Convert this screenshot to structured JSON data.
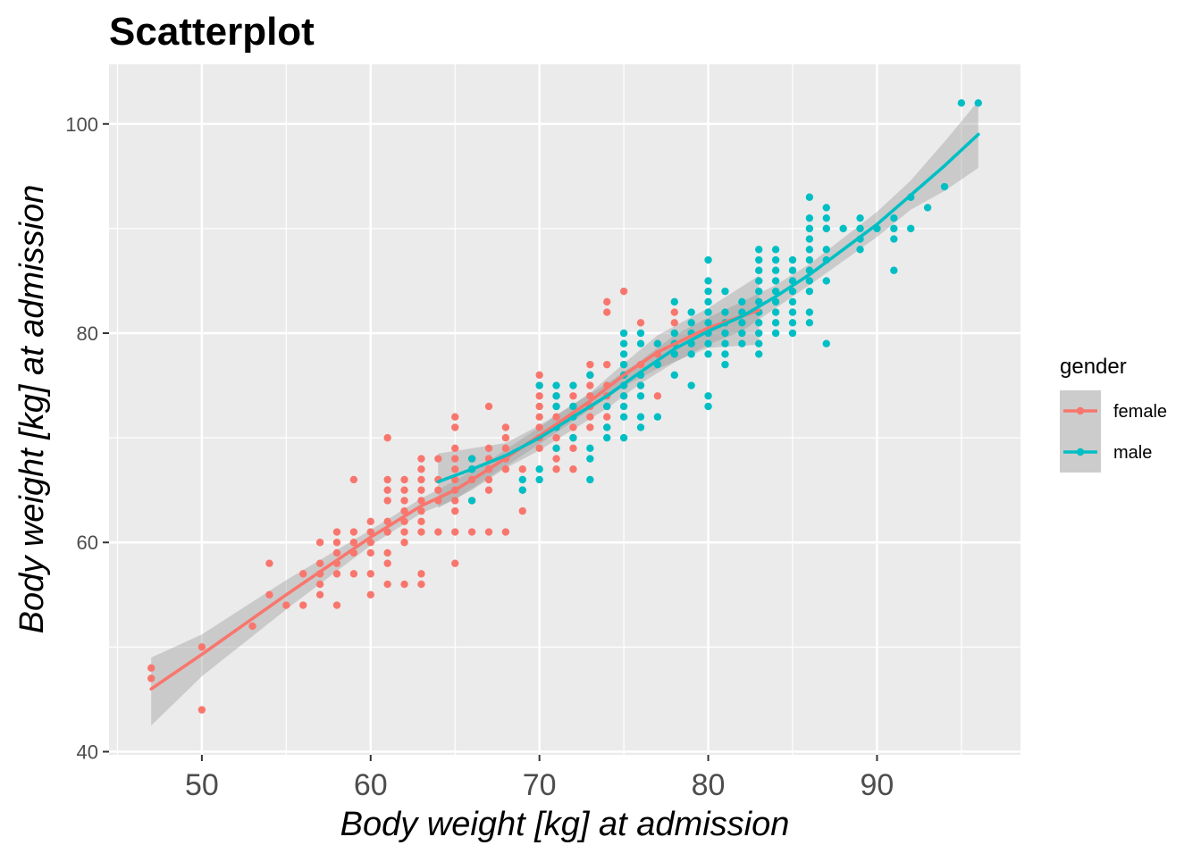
{
  "chart_data": {
    "type": "scatter",
    "title": "Scatterplot",
    "xlabel": "Body weight [kg] at admission",
    "ylabel": "Body weight [kg] at admission",
    "xlim": [
      44.5,
      98.5
    ],
    "ylim": [
      39.7,
      105.7
    ],
    "x_ticks": [
      50,
      60,
      70,
      80,
      90
    ],
    "y_ticks": [
      40,
      60,
      80,
      100
    ],
    "grid": true,
    "legend": {
      "title": "gender",
      "position": "right"
    },
    "series": [
      {
        "name": "female",
        "color": "#F8766D",
        "points": [
          [
            47,
            48
          ],
          [
            47,
            47
          ],
          [
            50,
            50
          ],
          [
            50,
            44
          ],
          [
            53,
            52
          ],
          [
            54,
            58
          ],
          [
            54,
            55
          ],
          [
            55,
            54
          ],
          [
            56,
            57
          ],
          [
            56,
            54
          ],
          [
            57,
            60
          ],
          [
            57,
            58
          ],
          [
            57,
            57
          ],
          [
            57,
            56
          ],
          [
            57,
            55
          ],
          [
            58,
            61
          ],
          [
            58,
            60
          ],
          [
            58,
            59
          ],
          [
            58,
            58
          ],
          [
            58,
            57
          ],
          [
            58,
            54
          ],
          [
            59,
            66
          ],
          [
            59,
            61
          ],
          [
            59,
            60
          ],
          [
            59,
            59
          ],
          [
            59,
            57
          ],
          [
            60,
            62
          ],
          [
            60,
            61
          ],
          [
            60,
            60
          ],
          [
            60,
            59
          ],
          [
            60,
            57
          ],
          [
            60,
            55
          ],
          [
            61,
            70
          ],
          [
            61,
            66
          ],
          [
            61,
            65
          ],
          [
            61,
            64
          ],
          [
            61,
            62
          ],
          [
            61,
            61
          ],
          [
            61,
            59
          ],
          [
            61,
            58
          ],
          [
            61,
            56
          ],
          [
            62,
            66
          ],
          [
            62,
            65
          ],
          [
            62,
            64
          ],
          [
            62,
            63
          ],
          [
            62,
            62
          ],
          [
            62,
            61
          ],
          [
            62,
            60
          ],
          [
            62,
            56
          ],
          [
            63,
            68
          ],
          [
            63,
            67
          ],
          [
            63,
            66
          ],
          [
            63,
            65
          ],
          [
            63,
            64
          ],
          [
            63,
            63
          ],
          [
            63,
            62
          ],
          [
            63,
            61
          ],
          [
            63,
            57
          ],
          [
            63,
            56
          ],
          [
            64,
            68
          ],
          [
            64,
            66
          ],
          [
            64,
            65
          ],
          [
            64,
            64
          ],
          [
            64,
            61
          ],
          [
            65,
            72
          ],
          [
            65,
            71
          ],
          [
            65,
            69
          ],
          [
            65,
            68
          ],
          [
            65,
            67
          ],
          [
            65,
            66
          ],
          [
            65,
            65
          ],
          [
            65,
            64
          ],
          [
            65,
            63
          ],
          [
            65,
            61
          ],
          [
            65,
            58
          ],
          [
            66,
            68
          ],
          [
            66,
            66
          ],
          [
            66,
            64
          ],
          [
            66,
            61
          ],
          [
            67,
            73
          ],
          [
            67,
            69
          ],
          [
            67,
            68
          ],
          [
            67,
            67
          ],
          [
            67,
            66
          ],
          [
            67,
            65
          ],
          [
            67,
            61
          ],
          [
            68,
            71
          ],
          [
            68,
            70
          ],
          [
            68,
            69
          ],
          [
            68,
            68
          ],
          [
            68,
            67
          ],
          [
            68,
            61
          ],
          [
            69,
            67
          ],
          [
            69,
            65
          ],
          [
            69,
            63
          ],
          [
            70,
            76
          ],
          [
            70,
            75
          ],
          [
            70,
            74
          ],
          [
            70,
            73
          ],
          [
            70,
            72
          ],
          [
            70,
            71
          ],
          [
            70,
            70
          ],
          [
            70,
            69
          ],
          [
            71,
            74
          ],
          [
            71,
            73
          ],
          [
            71,
            72
          ],
          [
            71,
            70
          ],
          [
            71,
            69
          ],
          [
            71,
            68
          ],
          [
            71,
            67
          ],
          [
            72,
            74
          ],
          [
            72,
            73
          ],
          [
            72,
            71
          ],
          [
            72,
            70
          ],
          [
            72,
            69
          ],
          [
            72,
            67
          ],
          [
            73,
            77
          ],
          [
            73,
            76
          ],
          [
            73,
            75
          ],
          [
            73,
            74
          ],
          [
            73,
            73
          ],
          [
            73,
            72
          ],
          [
            73,
            71
          ],
          [
            74,
            83
          ],
          [
            74,
            82
          ],
          [
            74,
            77
          ],
          [
            74,
            75
          ],
          [
            74,
            74
          ],
          [
            74,
            73
          ],
          [
            74,
            72
          ],
          [
            74,
            71
          ],
          [
            75,
            84
          ],
          [
            75,
            77
          ],
          [
            75,
            76
          ],
          [
            75,
            75
          ],
          [
            75,
            74
          ],
          [
            76,
            81
          ],
          [
            76,
            77
          ],
          [
            76,
            75
          ],
          [
            77,
            79
          ],
          [
            77,
            78
          ],
          [
            77,
            74
          ],
          [
            78,
            82
          ],
          [
            78,
            81
          ],
          [
            78,
            79
          ],
          [
            78,
            78
          ]
        ],
        "smooth_x": [
          47,
          50,
          55,
          60,
          63,
          65,
          67,
          70,
          73,
          75,
          77,
          80,
          83
        ],
        "smooth_y": [
          46,
          49.3,
          55,
          60.5,
          63.5,
          65,
          67,
          70.2,
          73.5,
          76,
          78.2,
          80.5,
          82.2
        ],
        "band_upper": [
          49,
          51.2,
          56.4,
          61.2,
          64.2,
          65.9,
          67.8,
          71,
          74.3,
          77.1,
          79.8,
          82.4,
          85.5
        ],
        "band_lower": [
          42.5,
          47.2,
          53.6,
          59.7,
          62.8,
          64.1,
          66.2,
          69.4,
          72.7,
          74.9,
          76.6,
          78.6,
          78.9
        ]
      },
      {
        "name": "male",
        "color": "#00BFC4",
        "points": [
          [
            66,
            68
          ],
          [
            66,
            64
          ],
          [
            66,
            67
          ],
          [
            69,
            66
          ],
          [
            69,
            65
          ],
          [
            70,
            75
          ],
          [
            70,
            67
          ],
          [
            70,
            66
          ],
          [
            71,
            75
          ],
          [
            71,
            74
          ],
          [
            71,
            73
          ],
          [
            71,
            71
          ],
          [
            71,
            69
          ],
          [
            72,
            75
          ],
          [
            72,
            73
          ],
          [
            72,
            72
          ],
          [
            72,
            70
          ],
          [
            73,
            76
          ],
          [
            73,
            69
          ],
          [
            73,
            68
          ],
          [
            73,
            66
          ],
          [
            74,
            73
          ],
          [
            74,
            71
          ],
          [
            74,
            70
          ],
          [
            75,
            80
          ],
          [
            75,
            79
          ],
          [
            75,
            78
          ],
          [
            75,
            77
          ],
          [
            75,
            76
          ],
          [
            75,
            75
          ],
          [
            75,
            74
          ],
          [
            75,
            73
          ],
          [
            75,
            72
          ],
          [
            75,
            70
          ],
          [
            76,
            80
          ],
          [
            76,
            79
          ],
          [
            76,
            76
          ],
          [
            76,
            75
          ],
          [
            76,
            74
          ],
          [
            76,
            72
          ],
          [
            76,
            71
          ],
          [
            77,
            79
          ],
          [
            77,
            77
          ],
          [
            77,
            72
          ],
          [
            78,
            83
          ],
          [
            78,
            80
          ],
          [
            78,
            79
          ],
          [
            78,
            78
          ],
          [
            78,
            76
          ],
          [
            79,
            82
          ],
          [
            79,
            81
          ],
          [
            79,
            80
          ],
          [
            79,
            79
          ],
          [
            79,
            78
          ],
          [
            79,
            75
          ],
          [
            80,
            87
          ],
          [
            80,
            85
          ],
          [
            80,
            84
          ],
          [
            80,
            83
          ],
          [
            80,
            82
          ],
          [
            80,
            81
          ],
          [
            80,
            80
          ],
          [
            80,
            79
          ],
          [
            80,
            78
          ],
          [
            80,
            74
          ],
          [
            80,
            73
          ],
          [
            81,
            84
          ],
          [
            81,
            82
          ],
          [
            81,
            81
          ],
          [
            81,
            80
          ],
          [
            81,
            79
          ],
          [
            81,
            78
          ],
          [
            81,
            77
          ],
          [
            82,
            83
          ],
          [
            82,
            82
          ],
          [
            82,
            81
          ],
          [
            82,
            80
          ],
          [
            82,
            79
          ],
          [
            83,
            88
          ],
          [
            83,
            87
          ],
          [
            83,
            86
          ],
          [
            83,
            85
          ],
          [
            83,
            84
          ],
          [
            83,
            83
          ],
          [
            83,
            82
          ],
          [
            83,
            81
          ],
          [
            83,
            80
          ],
          [
            83,
            79
          ],
          [
            83,
            78
          ],
          [
            84,
            88
          ],
          [
            84,
            87
          ],
          [
            84,
            86
          ],
          [
            84,
            85
          ],
          [
            84,
            84
          ],
          [
            84,
            83
          ],
          [
            84,
            82
          ],
          [
            84,
            81
          ],
          [
            84,
            80
          ],
          [
            85,
            87
          ],
          [
            85,
            86
          ],
          [
            85,
            85
          ],
          [
            85,
            84
          ],
          [
            85,
            83
          ],
          [
            85,
            82
          ],
          [
            85,
            81
          ],
          [
            85,
            80
          ],
          [
            86,
            93
          ],
          [
            86,
            91
          ],
          [
            86,
            90
          ],
          [
            86,
            89
          ],
          [
            86,
            88
          ],
          [
            86,
            87
          ],
          [
            86,
            86
          ],
          [
            86,
            85
          ],
          [
            86,
            84
          ],
          [
            86,
            82
          ],
          [
            86,
            81
          ],
          [
            87,
            92
          ],
          [
            87,
            91
          ],
          [
            87,
            90
          ],
          [
            87,
            88
          ],
          [
            87,
            87
          ],
          [
            87,
            85
          ],
          [
            87,
            79
          ],
          [
            88,
            90
          ],
          [
            89,
            91
          ],
          [
            89,
            90
          ],
          [
            89,
            89
          ],
          [
            89,
            88
          ],
          [
            90,
            90
          ],
          [
            91,
            91
          ],
          [
            91,
            90
          ],
          [
            91,
            89
          ],
          [
            91,
            86
          ],
          [
            92,
            93
          ],
          [
            92,
            90
          ],
          [
            93,
            92
          ],
          [
            94,
            94
          ],
          [
            95,
            102
          ],
          [
            96,
            102
          ]
        ],
        "smooth_x": [
          64,
          66,
          68,
          70,
          72,
          74,
          76,
          78,
          80,
          82,
          84,
          86,
          88,
          90,
          92,
          94,
          96
        ],
        "smooth_y": [
          65.8,
          67,
          68.3,
          70,
          72,
          74,
          76.3,
          78.5,
          80.2,
          81.6,
          83.5,
          85.6,
          88,
          90.4,
          93.2,
          96,
          99
        ],
        "band_upper": [
          68.5,
          69,
          69.5,
          71.2,
          73.2,
          75.2,
          77.4,
          79.8,
          81.5,
          83,
          84.6,
          86.6,
          89.1,
          91.6,
          94.6,
          98.3,
          102.2
        ],
        "band_lower": [
          63.3,
          65,
          67.1,
          68.8,
          70.8,
          72.8,
          75.2,
          77.2,
          78.9,
          80.2,
          82.4,
          84.6,
          86.9,
          89.2,
          91.8,
          93.6,
          95.8
        ]
      }
    ]
  }
}
